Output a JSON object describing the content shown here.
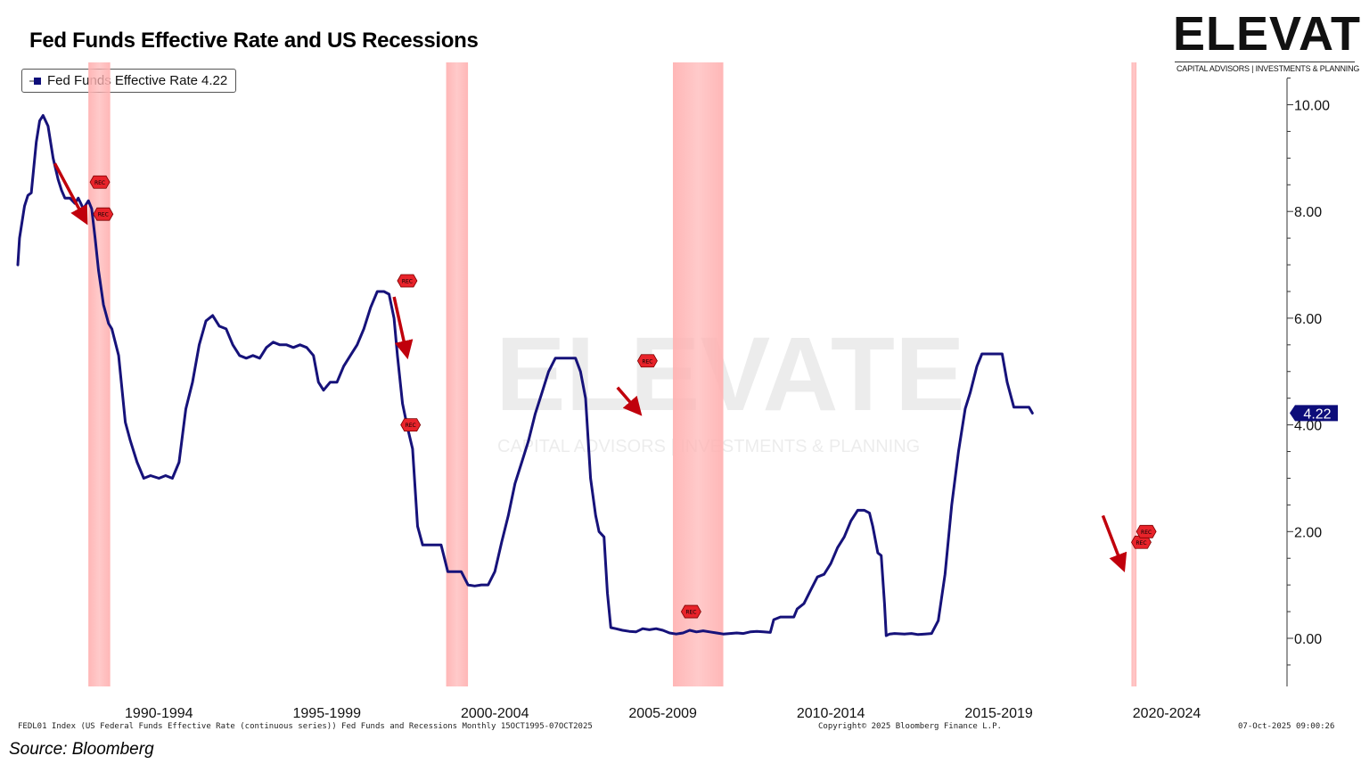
{
  "title": "Fed Funds Effective Rate and US Recessions",
  "legend": {
    "label": "Fed Funds Effective Rate",
    "value": "4.22"
  },
  "logo": {
    "word": "ELEVATE",
    "tagline": "CAPITAL ADVISORS | INVESTMENTS & PLANNING"
  },
  "watermark": {
    "word": "ELEVATE",
    "tagline": "CAPITAL ADVISORS | INVESTMENTS & PLANNING"
  },
  "footer": {
    "description": "FEDL01 Index (US Federal Funds Effective Rate (continuous series)) Fed Funds and Recessions Monthly 15OCT1995-07OCT2025",
    "copyright": "Copyright© 2025 Bloomberg Finance L.P.",
    "timestamp": "07-Oct-2025 09:00:26"
  },
  "source": "Source: Bloomberg",
  "colors": {
    "line": "#16127a",
    "recession": "#ffb3b3",
    "arrow": "#c0000c",
    "marker": "#e8232a",
    "last_badge": "#0d0d7a"
  },
  "chart_data": {
    "type": "line",
    "title": "Fed Funds Effective Rate and US Recessions",
    "xlabel": "",
    "ylabel": "",
    "ylim": [
      -0.9,
      10.6
    ],
    "xlim": [
      1986.8,
      2024.05
    ],
    "yticks": [
      0,
      2,
      4,
      6,
      8,
      10
    ],
    "ytick_labels": [
      "0.00",
      "2.00",
      "4.00",
      "6.00",
      "8.00",
      "10.00"
    ],
    "xtick_labels": [
      {
        "label": "1990-1994",
        "x": 1991.0
      },
      {
        "label": "1995-1999",
        "x": 1996.0
      },
      {
        "label": "2000-2004",
        "x": 2001.0
      },
      {
        "label": "2005-2009",
        "x": 2006.0
      },
      {
        "label": "2010-2014",
        "x": 2011.0
      },
      {
        "label": "2015-2019",
        "x": 2016.0
      },
      {
        "label": "2020-2024",
        "x": 2021.0
      }
    ],
    "recessions": [
      [
        1988.9,
        1989.55
      ],
      [
        1999.55,
        2000.2
      ],
      [
        2006.3,
        2007.8
      ],
      [
        2019.95,
        2020.1
      ]
    ],
    "last_value": "4.22",
    "series": [
      {
        "name": "Fed Funds Effective Rate",
        "points": [
          [
            1986.8,
            7.0
          ],
          [
            1986.85,
            7.5
          ],
          [
            1987.0,
            8.1
          ],
          [
            1987.1,
            8.3
          ],
          [
            1987.2,
            8.35
          ],
          [
            1987.35,
            9.3
          ],
          [
            1987.45,
            9.7
          ],
          [
            1987.55,
            9.8
          ],
          [
            1987.7,
            9.6
          ],
          [
            1987.85,
            9.0
          ],
          [
            1988.0,
            8.6
          ],
          [
            1988.1,
            8.4
          ],
          [
            1988.2,
            8.25
          ],
          [
            1988.35,
            8.25
          ],
          [
            1988.5,
            8.15
          ],
          [
            1988.6,
            8.25
          ],
          [
            1988.75,
            8.05
          ],
          [
            1988.9,
            8.2
          ],
          [
            1989.0,
            8.05
          ],
          [
            1989.1,
            7.5
          ],
          [
            1989.2,
            6.9
          ],
          [
            1989.35,
            6.25
          ],
          [
            1989.5,
            5.9
          ],
          [
            1989.6,
            5.8
          ],
          [
            1989.8,
            5.3
          ],
          [
            1990.0,
            4.05
          ],
          [
            1990.15,
            3.7
          ],
          [
            1990.35,
            3.3
          ],
          [
            1990.55,
            3.0
          ],
          [
            1990.75,
            3.05
          ],
          [
            1991.0,
            3.0
          ],
          [
            1991.2,
            3.05
          ],
          [
            1991.4,
            3.0
          ],
          [
            1991.6,
            3.3
          ],
          [
            1991.8,
            4.3
          ],
          [
            1992.0,
            4.8
          ],
          [
            1992.2,
            5.5
          ],
          [
            1992.4,
            5.95
          ],
          [
            1992.6,
            6.05
          ],
          [
            1992.8,
            5.85
          ],
          [
            1993.0,
            5.8
          ],
          [
            1993.2,
            5.5
          ],
          [
            1993.4,
            5.3
          ],
          [
            1993.6,
            5.25
          ],
          [
            1993.8,
            5.3
          ],
          [
            1994.0,
            5.25
          ],
          [
            1994.2,
            5.45
          ],
          [
            1994.4,
            5.55
          ],
          [
            1994.6,
            5.5
          ],
          [
            1994.8,
            5.5
          ],
          [
            1995.0,
            5.45
          ],
          [
            1995.2,
            5.5
          ],
          [
            1995.4,
            5.45
          ],
          [
            1995.6,
            5.3
          ],
          [
            1995.75,
            4.8
          ],
          [
            1995.9,
            4.65
          ],
          [
            1996.1,
            4.8
          ],
          [
            1996.3,
            4.8
          ],
          [
            1996.5,
            5.1
          ],
          [
            1996.7,
            5.3
          ],
          [
            1996.9,
            5.5
          ],
          [
            1997.1,
            5.8
          ],
          [
            1997.3,
            6.2
          ],
          [
            1997.5,
            6.5
          ],
          [
            1997.7,
            6.5
          ],
          [
            1997.85,
            6.45
          ],
          [
            1998.0,
            6.0
          ],
          [
            1998.1,
            5.3
          ],
          [
            1998.25,
            4.4
          ],
          [
            1998.4,
            3.95
          ],
          [
            1998.55,
            3.55
          ],
          [
            1998.7,
            2.1
          ],
          [
            1998.85,
            1.75
          ],
          [
            1999.0,
            1.75
          ],
          [
            1999.2,
            1.75
          ],
          [
            1999.4,
            1.75
          ],
          [
            1999.6,
            1.25
          ],
          [
            1999.8,
            1.25
          ],
          [
            2000.0,
            1.25
          ],
          [
            2000.2,
            1.0
          ],
          [
            2000.4,
            0.98
          ],
          [
            2000.6,
            1.0
          ],
          [
            2000.8,
            1.0
          ],
          [
            2001.0,
            1.25
          ],
          [
            2001.2,
            1.8
          ],
          [
            2001.4,
            2.3
          ],
          [
            2001.6,
            2.9
          ],
          [
            2001.8,
            3.3
          ],
          [
            2002.0,
            3.7
          ],
          [
            2002.2,
            4.2
          ],
          [
            2002.4,
            4.6
          ],
          [
            2002.6,
            5.0
          ],
          [
            2002.8,
            5.25
          ],
          [
            2003.0,
            5.25
          ],
          [
            2003.2,
            5.25
          ],
          [
            2003.4,
            5.25
          ],
          [
            2003.55,
            5.0
          ],
          [
            2003.7,
            4.5
          ],
          [
            2003.85,
            3.0
          ],
          [
            2004.0,
            2.3
          ],
          [
            2004.1,
            2.0
          ],
          [
            2004.25,
            1.9
          ],
          [
            2004.35,
            0.85
          ],
          [
            2004.45,
            0.2
          ],
          [
            2004.6,
            0.18
          ],
          [
            2004.8,
            0.15
          ],
          [
            2005.0,
            0.13
          ],
          [
            2005.2,
            0.12
          ],
          [
            2005.4,
            0.18
          ],
          [
            2005.6,
            0.16
          ],
          [
            2005.8,
            0.18
          ],
          [
            2006.0,
            0.15
          ],
          [
            2006.2,
            0.1
          ],
          [
            2006.4,
            0.08
          ],
          [
            2006.6,
            0.1
          ],
          [
            2006.8,
            0.15
          ],
          [
            2007.0,
            0.12
          ],
          [
            2007.2,
            0.14
          ],
          [
            2007.4,
            0.12
          ],
          [
            2007.6,
            0.1
          ],
          [
            2007.8,
            0.08
          ],
          [
            2008.0,
            0.09
          ],
          [
            2008.2,
            0.1
          ],
          [
            2008.4,
            0.09
          ],
          [
            2008.6,
            0.12
          ],
          [
            2008.8,
            0.13
          ],
          [
            2009.0,
            0.12
          ],
          [
            2009.2,
            0.11
          ],
          [
            2009.3,
            0.35
          ],
          [
            2009.5,
            0.4
          ],
          [
            2009.7,
            0.4
          ],
          [
            2009.9,
            0.4
          ],
          [
            2010.0,
            0.55
          ],
          [
            2010.2,
            0.65
          ],
          [
            2010.4,
            0.9
          ],
          [
            2010.6,
            1.15
          ],
          [
            2010.8,
            1.2
          ],
          [
            2011.0,
            1.4
          ],
          [
            2011.2,
            1.7
          ],
          [
            2011.4,
            1.9
          ],
          [
            2011.6,
            2.2
          ],
          [
            2011.8,
            2.4
          ],
          [
            2012.0,
            2.4
          ],
          [
            2012.15,
            2.35
          ],
          [
            2012.25,
            2.1
          ],
          [
            2012.4,
            1.6
          ],
          [
            2012.5,
            1.55
          ],
          [
            2012.6,
            0.65
          ],
          [
            2012.65,
            0.05
          ],
          [
            2012.75,
            0.08
          ],
          [
            2012.9,
            0.09
          ],
          [
            2013.2,
            0.08
          ],
          [
            2013.4,
            0.09
          ],
          [
            2013.6,
            0.07
          ],
          [
            2013.8,
            0.08
          ],
          [
            2014.0,
            0.09
          ],
          [
            2014.2,
            0.33
          ],
          [
            2014.4,
            1.2
          ],
          [
            2014.6,
            2.5
          ],
          [
            2014.8,
            3.5
          ],
          [
            2015.0,
            4.3
          ],
          [
            2015.15,
            4.6
          ],
          [
            2015.35,
            5.1
          ],
          [
            2015.5,
            5.33
          ],
          [
            2015.8,
            5.33
          ],
          [
            2016.0,
            5.33
          ],
          [
            2016.1,
            5.33
          ],
          [
            2016.25,
            4.8
          ],
          [
            2016.45,
            4.33
          ],
          [
            2016.7,
            4.33
          ],
          [
            2016.9,
            4.33
          ],
          [
            2017.0,
            4.22
          ]
        ]
      }
    ],
    "markers": [
      {
        "label": "REC",
        "x": 1988.95,
        "y": 8.55
      },
      {
        "label": "REC",
        "x": 1989.05,
        "y": 7.95
      },
      {
        "label": "REC",
        "x": 1998.1,
        "y": 6.7
      },
      {
        "label": "REC",
        "x": 1998.2,
        "y": 4.0
      },
      {
        "label": "REC",
        "x": 2005.25,
        "y": 5.2
      },
      {
        "label": "REC",
        "x": 2006.55,
        "y": 0.5
      },
      {
        "label": "REC",
        "x": 2019.95,
        "y": 1.8
      },
      {
        "label": "REC",
        "x": 2020.1,
        "y": 2.0
      }
    ],
    "arrows": [
      {
        "from": [
          1987.9,
          8.9
        ],
        "to": [
          1988.75,
          7.9
        ]
      },
      {
        "from": [
          1998.0,
          6.4
        ],
        "to": [
          1998.35,
          5.4
        ]
      },
      {
        "from": [
          2004.65,
          4.7
        ],
        "to": [
          2005.2,
          4.3
        ]
      },
      {
        "from": [
          2019.1,
          2.3
        ],
        "to": [
          2019.65,
          1.4
        ]
      }
    ]
  }
}
